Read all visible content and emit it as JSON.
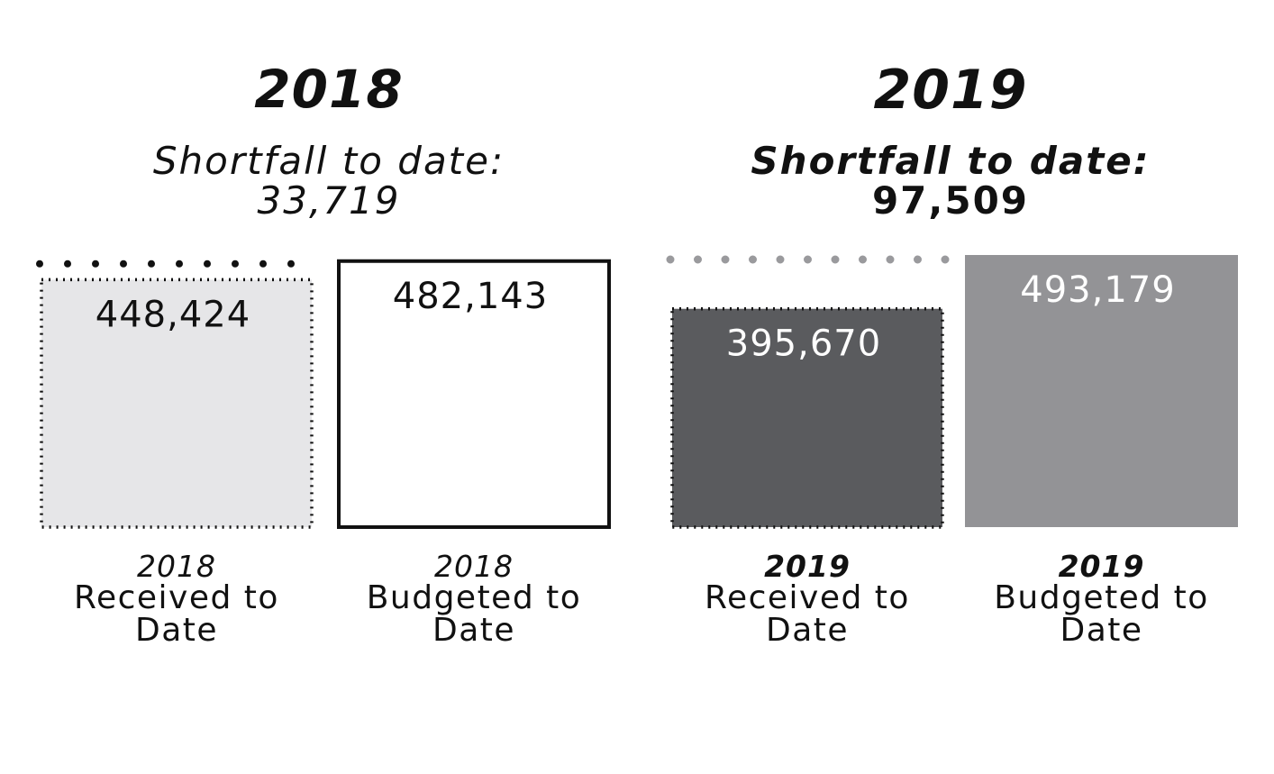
{
  "chart_data": [
    {
      "type": "bar",
      "title": "2018",
      "subtitle": "Shortfall to date:",
      "shortfall": "33,719",
      "categories": [
        {
          "year": "2018",
          "line1": "Received to",
          "line2": "Date"
        },
        {
          "year": "2018",
          "line1": "Budgeted to",
          "line2": "Date"
        }
      ],
      "values": [
        448424,
        482143
      ],
      "value_labels": [
        "448,424",
        "482,143"
      ],
      "colors": [
        "#e6e6e8",
        "#ffffff"
      ],
      "border_colors": [
        "#111111",
        "#111111"
      ],
      "label_colors": [
        "#111111",
        "#111111"
      ],
      "ylim": [
        0,
        493179
      ]
    },
    {
      "type": "bar",
      "title": "2019",
      "subtitle": "Shortfall to date:",
      "shortfall": "97,509",
      "categories": [
        {
          "year": "2019",
          "line1": "Received to",
          "line2": "Date"
        },
        {
          "year": "2019",
          "line1": "Budgeted to",
          "line2": "Date"
        }
      ],
      "values": [
        395670,
        493179
      ],
      "value_labels": [
        "395,670",
        "493,179"
      ],
      "colors": [
        "#5a5b5e",
        "#939396"
      ],
      "border_colors": [
        "#111111",
        "#939396"
      ],
      "label_colors": [
        "#ffffff",
        "#ffffff"
      ],
      "ylim": [
        0,
        493179
      ]
    }
  ]
}
